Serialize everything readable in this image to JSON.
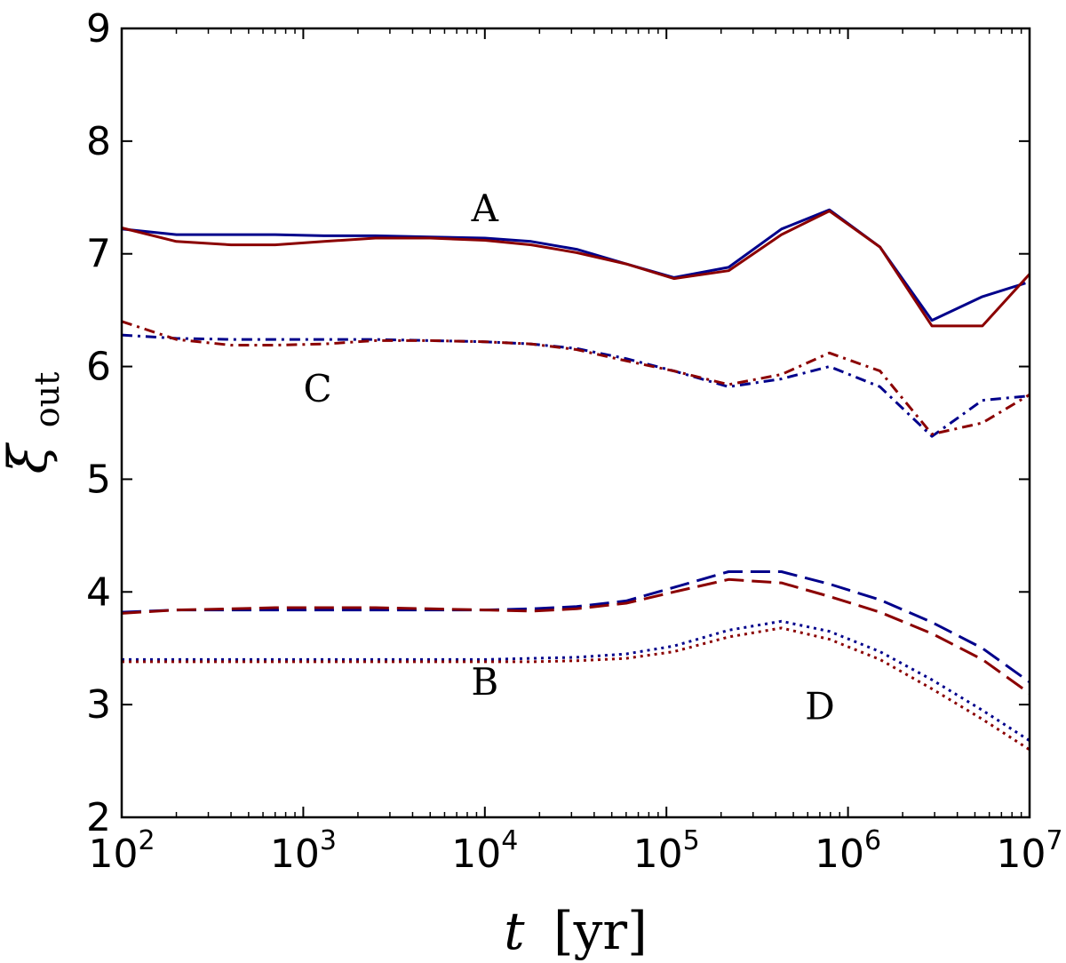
{
  "chart_data": {
    "type": "line",
    "title": "",
    "xlabel": "t",
    "xlabel_unit": "[yr]",
    "ylabel": "ξ",
    "ylabel_subscript": "out",
    "xscale": "log",
    "xlim": [
      100,
      10000000
    ],
    "ylim": [
      2,
      9
    ],
    "x_ticks": [
      {
        "value": 100,
        "base": "10",
        "exp": "2"
      },
      {
        "value": 1000,
        "base": "10",
        "exp": "3"
      },
      {
        "value": 10000,
        "base": "10",
        "exp": "4"
      },
      {
        "value": 100000,
        "base": "10",
        "exp": "5"
      },
      {
        "value": 1000000,
        "base": "10",
        "exp": "6"
      },
      {
        "value": 10000000,
        "base": "10",
        "exp": "7"
      }
    ],
    "y_ticks": [
      "2",
      "3",
      "4",
      "5",
      "6",
      "7",
      "8",
      "9"
    ],
    "colors": {
      "blue": "#00008b",
      "red": "#8b0000"
    },
    "annotations": [
      {
        "text": "A",
        "x": 10000,
        "y": 7.4
      },
      {
        "text": "C",
        "x": 1200,
        "y": 5.8
      },
      {
        "text": "B",
        "x": 10000,
        "y": 3.2
      },
      {
        "text": "D",
        "x": 700000,
        "y": 2.98
      }
    ],
    "series": [
      {
        "name": "A-blue",
        "color": "#00008b",
        "dash": "solid",
        "x": [
          100,
          200,
          400,
          700,
          1300,
          2500,
          5000,
          10000,
          18000,
          32000,
          60000,
          110000,
          220000,
          430000,
          790000,
          1500000,
          2900000,
          5500000,
          9500000
        ],
        "y": [
          7.22,
          7.17,
          7.17,
          7.17,
          7.16,
          7.16,
          7.15,
          7.14,
          7.11,
          7.04,
          6.91,
          6.79,
          6.88,
          7.22,
          7.39,
          7.06,
          6.41,
          6.62,
          6.74
        ]
      },
      {
        "name": "A-red",
        "color": "#8b0000",
        "dash": "solid",
        "x": [
          100,
          200,
          400,
          700,
          1300,
          2500,
          5000,
          10000,
          18000,
          32000,
          60000,
          110000,
          220000,
          430000,
          790000,
          1500000,
          2900000,
          5500000,
          10000000
        ],
        "y": [
          7.23,
          7.11,
          7.08,
          7.08,
          7.11,
          7.14,
          7.14,
          7.12,
          7.08,
          7.01,
          6.91,
          6.78,
          6.85,
          7.17,
          7.38,
          7.06,
          6.36,
          6.36,
          6.82
        ]
      },
      {
        "name": "C-blue",
        "color": "#00008b",
        "dash": "dashdot",
        "x": [
          100,
          200,
          400,
          700,
          1300,
          2500,
          5000,
          10000,
          18000,
          32000,
          60000,
          110000,
          220000,
          430000,
          790000,
          1500000,
          2900000,
          5500000,
          10000000
        ],
        "y": [
          6.28,
          6.25,
          6.24,
          6.24,
          6.24,
          6.24,
          6.23,
          6.22,
          6.2,
          6.16,
          6.07,
          5.96,
          5.82,
          5.89,
          6.0,
          5.82,
          5.38,
          5.7,
          5.74
        ]
      },
      {
        "name": "C-red",
        "color": "#8b0000",
        "dash": "dashdot",
        "x": [
          100,
          200,
          400,
          700,
          1300,
          2500,
          5000,
          10000,
          18000,
          32000,
          60000,
          110000,
          220000,
          430000,
          790000,
          1500000,
          2900000,
          5500000,
          10000000
        ],
        "y": [
          6.4,
          6.24,
          6.19,
          6.19,
          6.2,
          6.23,
          6.23,
          6.22,
          6.2,
          6.15,
          6.05,
          5.96,
          5.84,
          5.93,
          6.12,
          5.96,
          5.4,
          5.5,
          5.75
        ]
      },
      {
        "name": "B-blue",
        "color": "#00008b",
        "dash": "dashed",
        "x": [
          100,
          200,
          400,
          700,
          1300,
          2500,
          5000,
          10000,
          18000,
          32000,
          60000,
          110000,
          220000,
          430000,
          790000,
          1500000,
          2900000,
          5500000,
          10000000
        ],
        "y": [
          3.82,
          3.84,
          3.84,
          3.84,
          3.84,
          3.84,
          3.84,
          3.84,
          3.85,
          3.87,
          3.92,
          4.04,
          4.18,
          4.18,
          4.07,
          3.93,
          3.73,
          3.5,
          3.2
        ]
      },
      {
        "name": "B-red",
        "color": "#8b0000",
        "dash": "dashed",
        "x": [
          100,
          200,
          400,
          700,
          1300,
          2500,
          5000,
          10000,
          18000,
          32000,
          60000,
          110000,
          220000,
          430000,
          790000,
          1500000,
          2900000,
          5500000,
          10000000
        ],
        "y": [
          3.81,
          3.84,
          3.85,
          3.86,
          3.86,
          3.86,
          3.85,
          3.84,
          3.83,
          3.85,
          3.9,
          4.0,
          4.11,
          4.08,
          3.96,
          3.82,
          3.63,
          3.4,
          3.1
        ]
      },
      {
        "name": "D-blue",
        "color": "#00008b",
        "dash": "dotted",
        "x": [
          100,
          200,
          400,
          700,
          1300,
          2500,
          5000,
          10000,
          18000,
          32000,
          60000,
          110000,
          220000,
          430000,
          790000,
          1500000,
          2900000,
          5500000,
          10000000
        ],
        "y": [
          3.4,
          3.4,
          3.4,
          3.4,
          3.4,
          3.4,
          3.4,
          3.4,
          3.41,
          3.42,
          3.45,
          3.52,
          3.66,
          3.74,
          3.65,
          3.47,
          3.22,
          2.95,
          2.68
        ]
      },
      {
        "name": "D-red",
        "color": "#8b0000",
        "dash": "dotted",
        "x": [
          100,
          200,
          400,
          700,
          1300,
          2500,
          5000,
          10000,
          18000,
          32000,
          60000,
          110000,
          220000,
          430000,
          790000,
          1500000,
          2900000,
          5500000,
          10000000
        ],
        "y": [
          3.38,
          3.38,
          3.38,
          3.38,
          3.38,
          3.38,
          3.38,
          3.38,
          3.38,
          3.39,
          3.41,
          3.47,
          3.6,
          3.68,
          3.58,
          3.4,
          3.14,
          2.87,
          2.6
        ]
      }
    ]
  }
}
